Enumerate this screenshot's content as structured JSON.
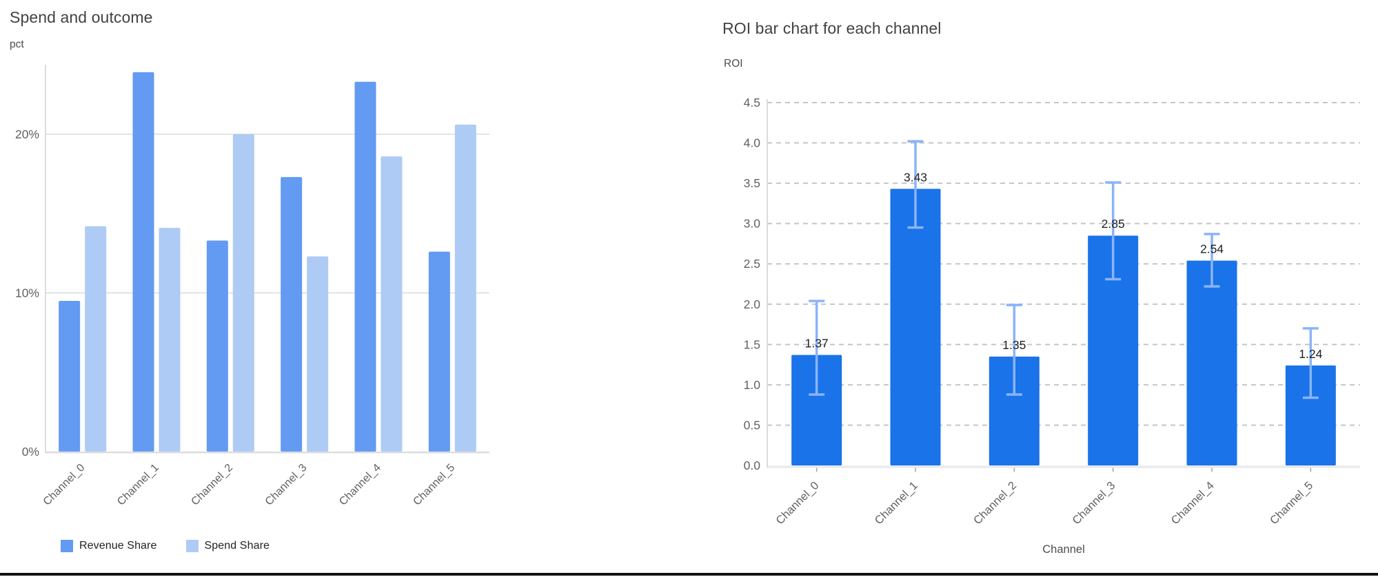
{
  "page": {
    "background": "#ffffff",
    "bottom_bar_color": "#121316"
  },
  "chart_data": [
    {
      "id": "spend-and-outcome",
      "type": "bar",
      "title": "Spend and outcome",
      "ylabel": "pct",
      "xlabel": "",
      "categories": [
        "Channel_0",
        "Channel_1",
        "Channel_2",
        "Channel_3",
        "Channel_4",
        "Channel_5"
      ],
      "series": [
        {
          "name": "Revenue Share",
          "color": "#639AF2",
          "values": [
            9.5,
            23.9,
            13.3,
            17.3,
            23.3,
            12.6
          ]
        },
        {
          "name": "Spend Share",
          "color": "#AECBF5",
          "values": [
            14.2,
            14.1,
            20.0,
            12.3,
            18.6,
            20.6
          ]
        }
      ],
      "value_unit": "%",
      "ylim": [
        0,
        24.2
      ],
      "y_ticks": [
        {
          "value": 0,
          "label": "0%"
        },
        {
          "value": 10,
          "label": "10%"
        },
        {
          "value": 20,
          "label": "20%"
        }
      ],
      "grid": "solid-horizontal",
      "legend_position": "bottom-left",
      "tick_color": "#616161",
      "grid_color": "#E3E3E3",
      "axis_color": "#DADCE0"
    },
    {
      "id": "roi-by-channel",
      "type": "bar",
      "title": "ROI bar chart for each channel",
      "ylabel": "ROI",
      "xlabel": "Channel",
      "categories": [
        "Channel_0",
        "Channel_1",
        "Channel_2",
        "Channel_3",
        "Channel_4",
        "Channel_5"
      ],
      "series": [
        {
          "name": "ROI",
          "color": "#1A73E8",
          "values": [
            1.37,
            3.43,
            1.35,
            2.85,
            2.54,
            1.24
          ]
        }
      ],
      "data_labels": [
        "1.37",
        "3.43",
        "1.35",
        "2.85",
        "2.54",
        "1.24"
      ],
      "error_bars": {
        "color": "#8AB4F8",
        "low": [
          0.88,
          2.95,
          0.88,
          2.31,
          2.22,
          0.84
        ],
        "high": [
          2.04,
          4.02,
          1.99,
          3.51,
          2.87,
          1.7
        ]
      },
      "ylim": [
        0,
        4.5
      ],
      "y_ticks": [
        {
          "value": 0.0,
          "label": "0.0"
        },
        {
          "value": 0.5,
          "label": "0.5"
        },
        {
          "value": 1.0,
          "label": "1.0"
        },
        {
          "value": 1.5,
          "label": "1.5"
        },
        {
          "value": 2.0,
          "label": "2.0"
        },
        {
          "value": 2.5,
          "label": "2.5"
        },
        {
          "value": 3.0,
          "label": "3.0"
        },
        {
          "value": 3.5,
          "label": "3.5"
        },
        {
          "value": 4.0,
          "label": "4.0"
        },
        {
          "value": 4.5,
          "label": "4.5"
        }
      ],
      "grid": "dashed-horizontal",
      "legend_position": "none",
      "label_color": "#202124",
      "tick_color": "#616161",
      "grid_color": "#C2C5C9",
      "axis_color": "#DADCE0"
    }
  ]
}
